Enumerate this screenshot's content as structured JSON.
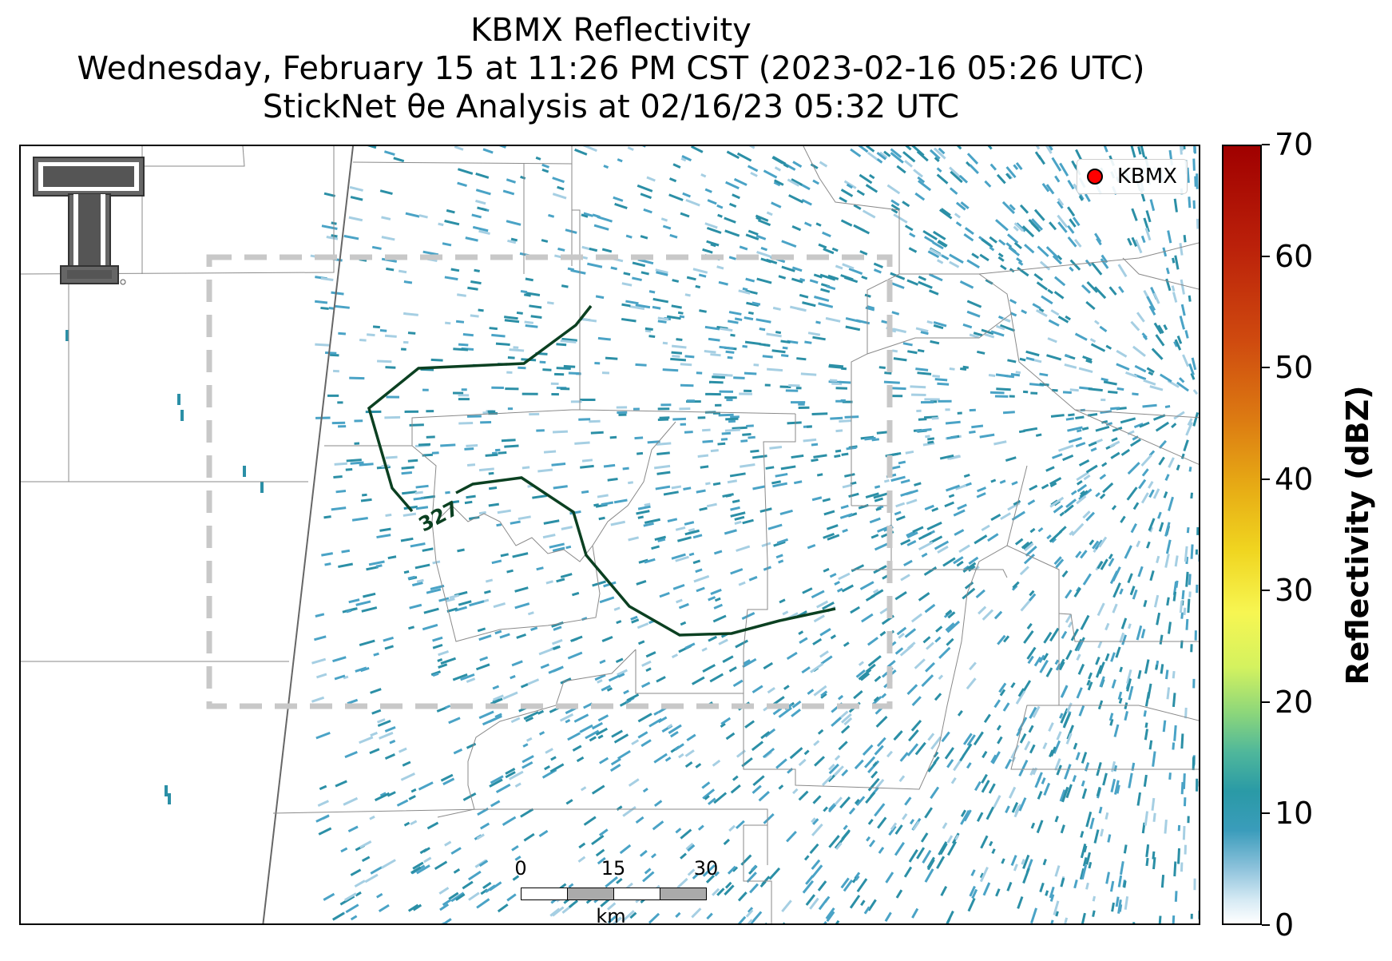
{
  "title": {
    "line1": "KBMX Reflectivity",
    "line2": "Wednesday, February 15 at 11:26 PM CST (2023-02-16 05:26 UTC)",
    "line3": "StickNet θe Analysis at 02/16/23 05:32 UTC"
  },
  "legend": {
    "label": "KBMX",
    "marker_color": "#ff0000"
  },
  "contour": {
    "label": "327",
    "color": "#0b4021"
  },
  "scale_bar": {
    "ticks": [
      "0",
      "15",
      "30"
    ],
    "unit": "km"
  },
  "colorbar": {
    "title": "Reflectivity (dBZ)",
    "ticks": [
      "0",
      "10",
      "20",
      "30",
      "40",
      "50",
      "60",
      "70"
    ],
    "min": 0,
    "max": 70
  },
  "colors": {
    "echo_light": "#a6cfe3",
    "echo_mid": "#4aa3c6",
    "echo_dark": "#2b8fa6",
    "analysis_box": "#c8c8c8",
    "county_lines": "#8a8a8a",
    "logo": "#555555"
  }
}
